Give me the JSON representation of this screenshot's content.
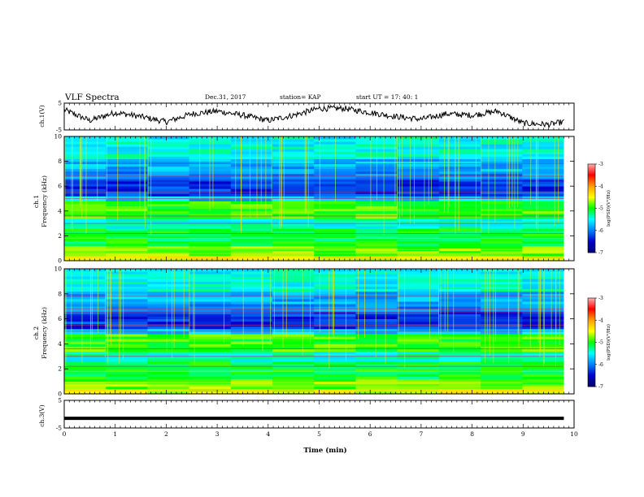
{
  "header": {
    "title": "VLF Spectra",
    "date": "Dec.31, 2017",
    "station": "station= KAP",
    "start": "start  UT =   17: 40: 1"
  },
  "colorbar": {
    "label": "log(PSD)(V²/Hz)",
    "ticks": [
      "-3",
      "-4",
      "-5",
      "-6",
      "-7"
    ],
    "colors": [
      "#ffb0b0",
      "#ff0000",
      "#ffa000",
      "#ffff00",
      "#00ff00",
      "#00ffff",
      "#0080ff",
      "#0000d0",
      "#00006a"
    ]
  },
  "chart_data": [
    {
      "type": "line",
      "panel": "ch.1 waveform",
      "ylabel": "ch.1(V)",
      "ylim": [
        -5,
        5
      ],
      "yticks": [
        "5",
        "-5"
      ],
      "xlim": [
        0,
        10
      ],
      "x": [
        0,
        0.5,
        1,
        1.5,
        2,
        2.5,
        3,
        3.5,
        4,
        4.5,
        5,
        5.5,
        6,
        6.5,
        7,
        7.5,
        8,
        8.5,
        9,
        9.5,
        9.8
      ],
      "y": [
        2.5,
        -1.5,
        1.5,
        0,
        -2,
        1,
        2,
        0.5,
        -1.5,
        0.5,
        3,
        3,
        1.5,
        0,
        -1,
        1,
        0.5,
        2,
        -2.5,
        -3,
        -2
      ]
    },
    {
      "type": "heatmap",
      "panel": "ch.1 spectrogram",
      "ylabel": "ch.1\nFrequency (kHz)",
      "ylim": [
        0,
        10
      ],
      "yticks": [
        "0",
        "2",
        "4",
        "6",
        "8",
        "10"
      ],
      "xlim": [
        0,
        10
      ],
      "colorscale": "log(PSD)(V²/Hz)",
      "zlim": [
        -7,
        -3
      ]
    },
    {
      "type": "heatmap",
      "panel": "ch.2 spectrogram",
      "ylabel": "ch.2\nFrequency (kHz)",
      "ylim": [
        0,
        10
      ],
      "yticks": [
        "0",
        "2",
        "4",
        "6",
        "8",
        "10"
      ],
      "xlim": [
        0,
        10
      ],
      "colorscale": "log(PSD)(V²/Hz)",
      "zlim": [
        -7,
        -3
      ]
    },
    {
      "type": "line",
      "panel": "ch.3 waveform",
      "ylabel": "ch.3(V)",
      "ylim": [
        -5,
        5
      ],
      "yticks": [
        "5",
        "-5"
      ],
      "xlim": [
        0,
        10
      ],
      "xlabel": "Time (min)",
      "xticks": [
        "0",
        "1",
        "2",
        "3",
        "4",
        "5",
        "6",
        "7",
        "8",
        "9",
        "10"
      ],
      "x": [
        0,
        9.8
      ],
      "y": [
        -1.5,
        -1.5
      ]
    }
  ]
}
